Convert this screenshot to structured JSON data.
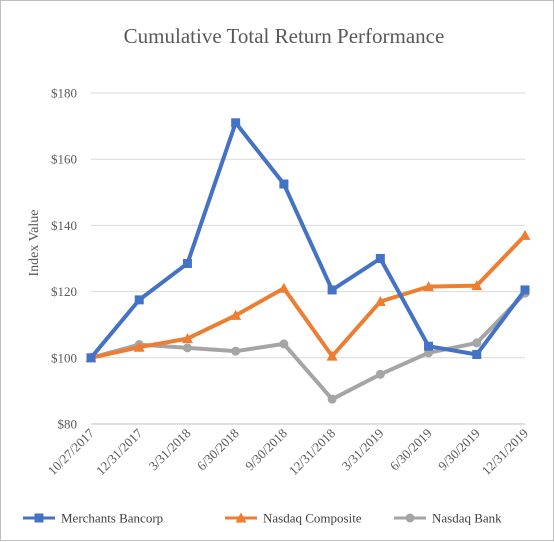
{
  "chart_data": {
    "type": "line",
    "title": "Cumulative Total Return Performance",
    "xlabel": "",
    "ylabel": "Index Value",
    "categories": [
      "10/27/2017",
      "12/31/2017",
      "3/31/2018",
      "6/30/2018",
      "9/30/2018",
      "12/31/2018",
      "3/31/2019",
      "6/30/2019",
      "9/30/2019",
      "12/31/2019"
    ],
    "ylim": [
      80,
      180
    ],
    "yticks": [
      80,
      100,
      120,
      140,
      160,
      180
    ],
    "ytick_labels": [
      "$80",
      "$100",
      "$120",
      "$140",
      "$160",
      "$180"
    ],
    "grid": true,
    "legend_position": "bottom",
    "series": [
      {
        "name": "Merchants Bancorp",
        "color": "#4472c4",
        "marker": "square",
        "values": [
          100,
          117.5,
          128.5,
          171,
          152.5,
          120.5,
          130,
          103.5,
          101,
          120.5
        ]
      },
      {
        "name": "Nasdaq Composite",
        "color": "#ed7d31",
        "marker": "triangle",
        "values": [
          100,
          103.2,
          105.8,
          112.8,
          121,
          100.5,
          117,
          121.5,
          121.8,
          137
        ]
      },
      {
        "name": "Nasdaq Bank",
        "color": "#a5a5a5",
        "marker": "circle",
        "values": [
          100,
          104,
          103,
          102,
          104.2,
          87.5,
          95,
          101.5,
          104.5,
          119.5
        ]
      }
    ]
  }
}
